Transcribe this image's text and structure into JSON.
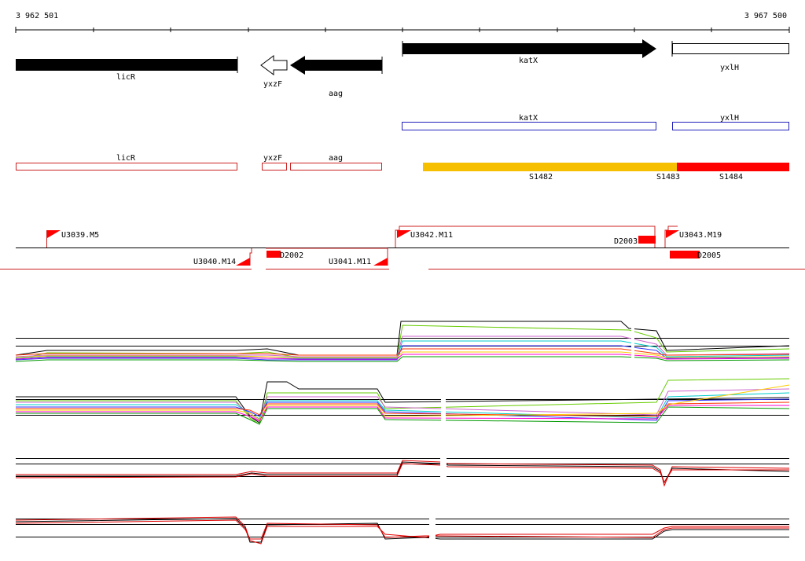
{
  "ruler": {
    "start": "3 962 501",
    "end": "3 967 500"
  },
  "genes": [
    {
      "name": "licR",
      "label": "licR"
    },
    {
      "name": "yxzF",
      "label": "yxzF"
    },
    {
      "name": "aag",
      "label": "aag"
    },
    {
      "name": "katX",
      "label": "katX"
    },
    {
      "name": "yxlH",
      "label": "yxlH"
    }
  ],
  "cds_outline_labels": {
    "katX": "katX",
    "yxlH": "yxlH"
  },
  "red_outline_labels": {
    "licR": "licR",
    "yxzF": "yxzF",
    "aag": "aag"
  },
  "segments": [
    {
      "name": "S1482",
      "color": "#f6c000"
    },
    {
      "name": "S1483",
      "color": "#f6c000"
    },
    {
      "name": "S1484",
      "color": "#ff0000"
    }
  ],
  "transcription_units": [
    "U3039.M5",
    "U3040.M14",
    "U3041.M11",
    "U3042.M11",
    "U3043.M19"
  ],
  "downregulated_regions": [
    "D2002",
    "D2003",
    "D2005"
  ],
  "colors": {
    "forward_gene": "#000000",
    "reverse_gene": "#000000",
    "cds_outline": "#2222bb",
    "red_outline": "#cc2222",
    "promoter": "#ff0000",
    "profile_red": "#e00000"
  }
}
